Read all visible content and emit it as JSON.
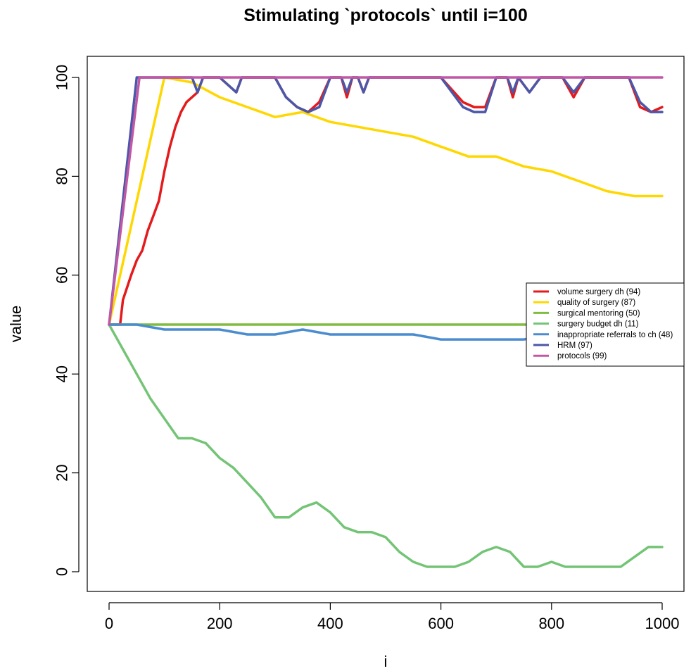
{
  "chart_data": {
    "type": "line",
    "title": "Stimulating `protocols` until i=100",
    "xlabel": "i",
    "ylabel": "value",
    "xlim": [
      0,
      1000
    ],
    "ylim": [
      0,
      100
    ],
    "x_ticks": [
      0,
      200,
      400,
      600,
      800,
      1000
    ],
    "y_ticks": [
      0,
      20,
      40,
      60,
      80,
      100
    ],
    "grid": false,
    "legend_position": "right",
    "series": [
      {
        "name": "volume surgery dh (94)",
        "color": "#e41a1c",
        "x": [
          0,
          20,
          25,
          40,
          50,
          60,
          70,
          80,
          90,
          100,
          110,
          120,
          130,
          140,
          150,
          160,
          170,
          200,
          230,
          240,
          260,
          300,
          320,
          340,
          360,
          380,
          400,
          420,
          430,
          440,
          450,
          460,
          470,
          480,
          500,
          540,
          560,
          600,
          640,
          660,
          680,
          700,
          720,
          730,
          740,
          760,
          780,
          800,
          820,
          840,
          860,
          880,
          900,
          940,
          960,
          980,
          1000
        ],
        "y": [
          50,
          50,
          55,
          60,
          63,
          65,
          69,
          72,
          75,
          81,
          86,
          90,
          93,
          95,
          96,
          97,
          100,
          100,
          97,
          100,
          100,
          100,
          96,
          94,
          93,
          95,
          100,
          100,
          96,
          100,
          100,
          97,
          100,
          100,
          100,
          100,
          100,
          100,
          95,
          94,
          94,
          100,
          100,
          96,
          100,
          97,
          100,
          100,
          100,
          96,
          100,
          100,
          100,
          100,
          94,
          93,
          94
        ]
      },
      {
        "name": "quality of surgery (87)",
        "color": "#ffd700",
        "x": [
          0,
          100,
          150,
          200,
          250,
          300,
          350,
          400,
          450,
          500,
          550,
          600,
          650,
          700,
          750,
          800,
          850,
          900,
          950,
          1000
        ],
        "y": [
          50,
          100,
          99,
          96,
          94,
          92,
          93,
          91,
          90,
          89,
          88,
          86,
          84,
          84,
          82,
          81,
          79,
          77,
          76,
          76
        ]
      },
      {
        "name": "surgical mentoring (50)",
        "color": "#7fbc41",
        "x": [
          0,
          1000
        ],
        "y": [
          50,
          50
        ]
      },
      {
        "name": "surgery budget dh (11)",
        "color": "#74c476",
        "x": [
          0,
          25,
          50,
          75,
          100,
          125,
          150,
          175,
          200,
          225,
          250,
          275,
          300,
          325,
          350,
          375,
          400,
          425,
          450,
          475,
          500,
          525,
          550,
          575,
          600,
          625,
          650,
          675,
          700,
          725,
          750,
          775,
          800,
          825,
          850,
          875,
          900,
          925,
          950,
          975,
          1000
        ],
        "y": [
          50,
          45,
          40,
          35,
          31,
          27,
          27,
          26,
          23,
          21,
          18,
          15,
          11,
          11,
          13,
          14,
          12,
          9,
          8,
          8,
          7,
          4,
          2,
          1,
          1,
          1,
          2,
          4,
          5,
          4,
          1,
          1,
          2,
          1,
          1,
          1,
          1,
          1,
          3,
          5,
          5
        ]
      },
      {
        "name": "inappropriate referrals to ch (48)",
        "color": "#4a8ccf",
        "x": [
          0,
          50,
          100,
          150,
          200,
          250,
          300,
          350,
          400,
          450,
          500,
          550,
          600,
          650,
          700,
          750,
          800,
          850,
          900,
          950,
          1000
        ],
        "y": [
          50,
          50,
          49,
          49,
          49,
          48,
          48,
          49,
          48,
          48,
          48,
          48,
          47,
          47,
          47,
          47,
          48,
          47,
          47,
          47,
          47
        ]
      },
      {
        "name": "HRM (97)",
        "color": "#4b57a8",
        "x": [
          0,
          50,
          150,
          160,
          170,
          200,
          230,
          240,
          260,
          300,
          320,
          340,
          360,
          380,
          400,
          420,
          430,
          440,
          450,
          460,
          470,
          480,
          500,
          540,
          560,
          600,
          640,
          660,
          680,
          700,
          720,
          730,
          740,
          760,
          780,
          800,
          820,
          840,
          860,
          880,
          900,
          940,
          960,
          980,
          1000
        ],
        "y": [
          50,
          100,
          100,
          97,
          100,
          100,
          97,
          100,
          100,
          100,
          96,
          94,
          93,
          94,
          100,
          100,
          97,
          100,
          100,
          97,
          100,
          100,
          100,
          100,
          100,
          100,
          94,
          93,
          93,
          100,
          100,
          97,
          100,
          97,
          100,
          100,
          100,
          97,
          100,
          100,
          100,
          100,
          95,
          93,
          93
        ]
      },
      {
        "name": "protocols (99)",
        "color": "#c158a5",
        "x": [
          0,
          55,
          1000
        ],
        "y": [
          50,
          100,
          100
        ]
      }
    ]
  }
}
